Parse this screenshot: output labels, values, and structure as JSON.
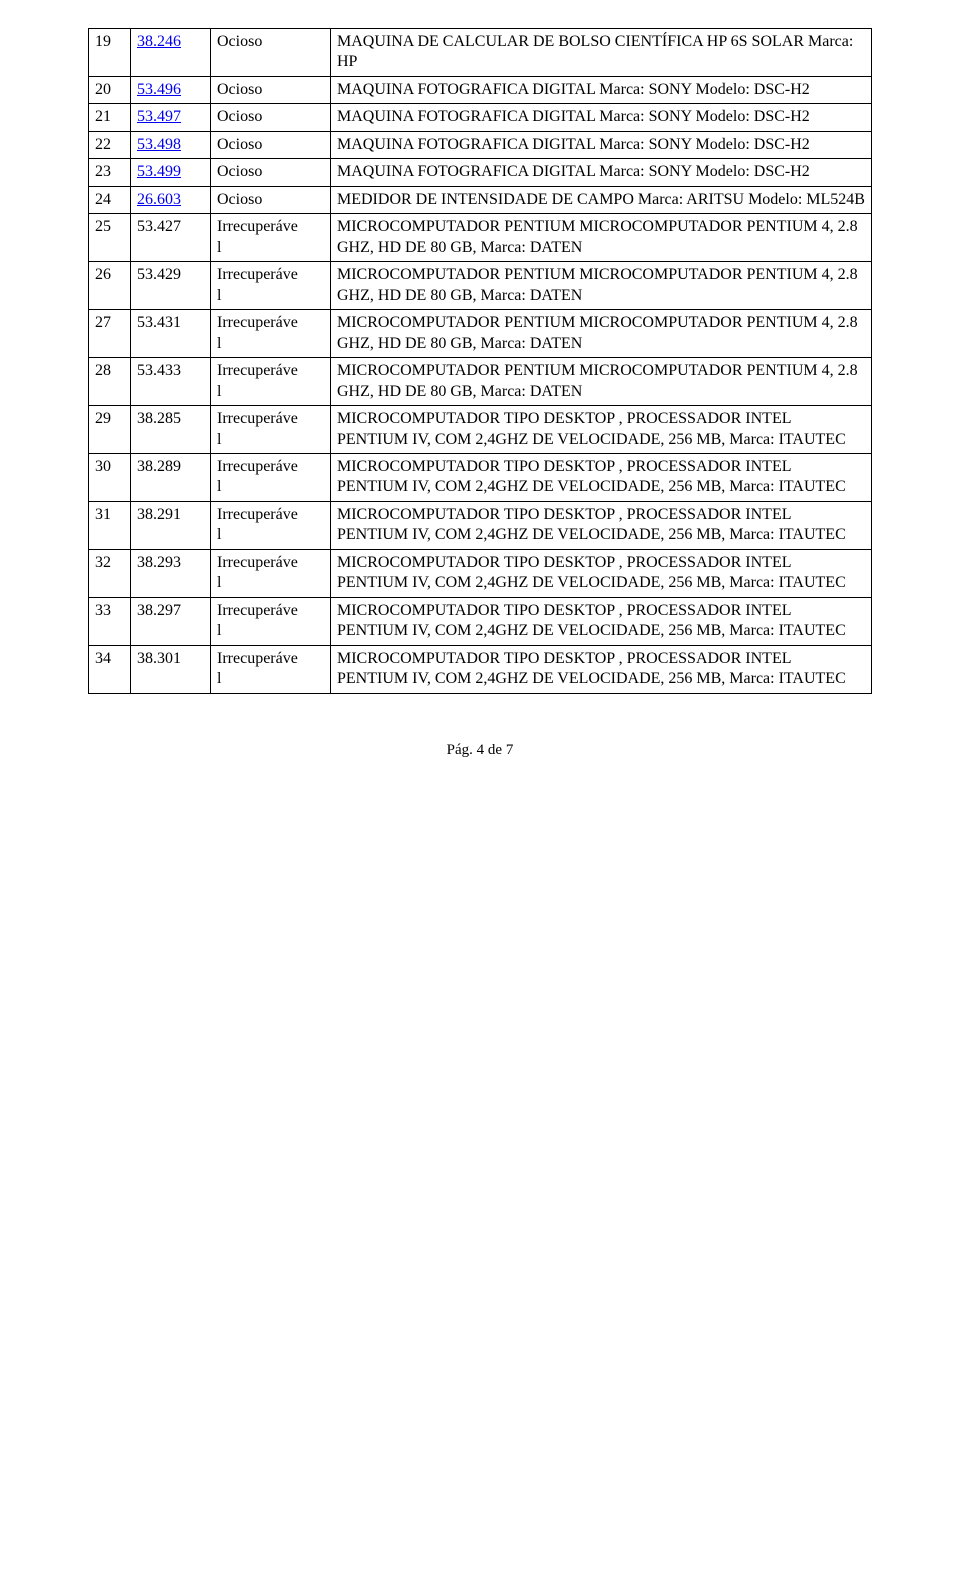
{
  "rows": [
    {
      "n": "19",
      "code": "38.246",
      "link": true,
      "status": "Ocioso",
      "desc": "MAQUINA DE CALCULAR DE BOLSO CIENTÍFICA HP 6S SOLAR   Marca: HP"
    },
    {
      "n": "20",
      "code": "53.496",
      "link": true,
      "status": "Ocioso",
      "desc": "MAQUINA FOTOGRAFICA DIGITAL Marca: SONY   Modelo: DSC-H2"
    },
    {
      "n": "21",
      "code": "53.497",
      "link": true,
      "status": "Ocioso",
      "desc": "MAQUINA FOTOGRAFICA DIGITAL Marca: SONY   Modelo: DSC-H2"
    },
    {
      "n": "22",
      "code": "53.498",
      "link": true,
      "status": "Ocioso",
      "desc": "MAQUINA FOTOGRAFICA DIGITAL Marca: SONY   Modelo: DSC-H2"
    },
    {
      "n": "23",
      "code": "53.499",
      "link": true,
      "status": "Ocioso",
      "desc": "MAQUINA FOTOGRAFICA DIGITAL Marca: SONY   Modelo: DSC-H2"
    },
    {
      "n": "24",
      "code": "26.603",
      "link": true,
      "status": "Ocioso",
      "desc": "MEDIDOR DE INTENSIDADE DE CAMPO Marca: ARITSU   Modelo: ML524B"
    },
    {
      "n": "25",
      "code": "53.427",
      "link": false,
      "status": "Irrecuperável",
      "desc": "MICROCOMPUTADOR PENTIUM MICROCOMPUTADOR PENTIUM 4, 2.8 GHZ, HD DE 80 GB, Marca: DATEN"
    },
    {
      "n": "26",
      "code": "53.429",
      "link": false,
      "status": "Irrecuperável",
      "desc": "MICROCOMPUTADOR PENTIUM MICROCOMPUTADOR PENTIUM 4, 2.8 GHZ, HD DE 80 GB, Marca: DATEN"
    },
    {
      "n": "27",
      "code": "53.431",
      "link": false,
      "status": "Irrecuperável",
      "desc": "MICROCOMPUTADOR PENTIUM MICROCOMPUTADOR PENTIUM 4, 2.8 GHZ, HD DE 80 GB, Marca: DATEN"
    },
    {
      "n": "28",
      "code": "53.433",
      "link": false,
      "status": "Irrecuperável",
      "desc": "MICROCOMPUTADOR PENTIUM MICROCOMPUTADOR PENTIUM 4, 2.8 GHZ, HD DE 80 GB, Marca: DATEN"
    },
    {
      "n": "29",
      "code": "38.285",
      "link": false,
      "status": "Irrecuperável",
      "desc": "MICROCOMPUTADOR TIPO DESKTOP , PROCESSADOR INTEL PENTIUM IV, COM 2,4GHZ DE VELOCIDADE, 256 MB, Marca: ITAUTEC"
    },
    {
      "n": "30",
      "code": "38.289",
      "link": false,
      "status": "Irrecuperável",
      "desc": "MICROCOMPUTADOR TIPO DESKTOP , PROCESSADOR INTEL PENTIUM IV, COM 2,4GHZ DE VELOCIDADE, 256 MB, Marca: ITAUTEC"
    },
    {
      "n": "31",
      "code": "38.291",
      "link": false,
      "status": "Irrecuperável",
      "desc": "MICROCOMPUTADOR TIPO DESKTOP , PROCESSADOR INTEL PENTIUM IV, COM 2,4GHZ DE VELOCIDADE, 256 MB, Marca: ITAUTEC"
    },
    {
      "n": "32",
      "code": "38.293",
      "link": false,
      "status": "Irrecuperável",
      "desc": "MICROCOMPUTADOR TIPO DESKTOP , PROCESSADOR INTEL PENTIUM IV, COM 2,4GHZ DE VELOCIDADE, 256 MB, Marca: ITAUTEC"
    },
    {
      "n": "33",
      "code": "38.297",
      "link": false,
      "status": "Irrecuperável",
      "desc": "MICROCOMPUTADOR TIPO DESKTOP , PROCESSADOR INTEL PENTIUM IV, COM 2,4GHZ DE VELOCIDADE, 256 MB, Marca: ITAUTEC"
    },
    {
      "n": "34",
      "code": "38.301",
      "link": false,
      "status": "Irrecuperável",
      "desc": "MICROCOMPUTADOR TIPO DESKTOP , PROCESSADOR INTEL PENTIUM IV, COM 2,4GHZ DE VELOCIDADE, 256 MB, Marca: ITAUTEC"
    }
  ],
  "footer": "Pág. 4 de 7",
  "colors": {
    "link": "#0000ee",
    "text": "#000000",
    "border": "#000000",
    "background": "#ffffff"
  },
  "font_family": "Times New Roman",
  "font_size_pt": 12
}
